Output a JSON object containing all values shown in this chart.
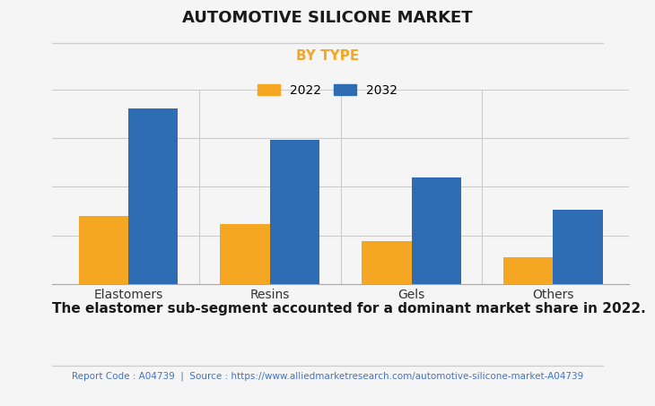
{
  "title": "AUTOMOTIVE SILICONE MARKET",
  "subtitle": "BY TYPE",
  "categories": [
    "Elastomers",
    "Resins",
    "Gels",
    "Others"
  ],
  "values_2022": [
    35,
    31,
    22,
    14
  ],
  "values_2032": [
    90,
    74,
    55,
    38
  ],
  "color_2022": "#F5A623",
  "color_2032": "#2E6DB4",
  "legend_labels": [
    "2022",
    "2032"
  ],
  "bar_width": 0.35,
  "ylim": [
    0,
    100
  ],
  "grid_color": "#cccccc",
  "bg_color": "#f5f5f5",
  "footer_text": "Report Code : A04739  |  Source : https://www.alliedmarketresearch.com/automotive-silicone-market-A04739",
  "note_text": "The elastomer sub-segment accounted for a dominant market share in 2022.",
  "subtitle_color": "#F5A623",
  "title_color": "#1a1a1a",
  "note_color": "#1a1a1a",
  "footer_color": "#4472C4"
}
